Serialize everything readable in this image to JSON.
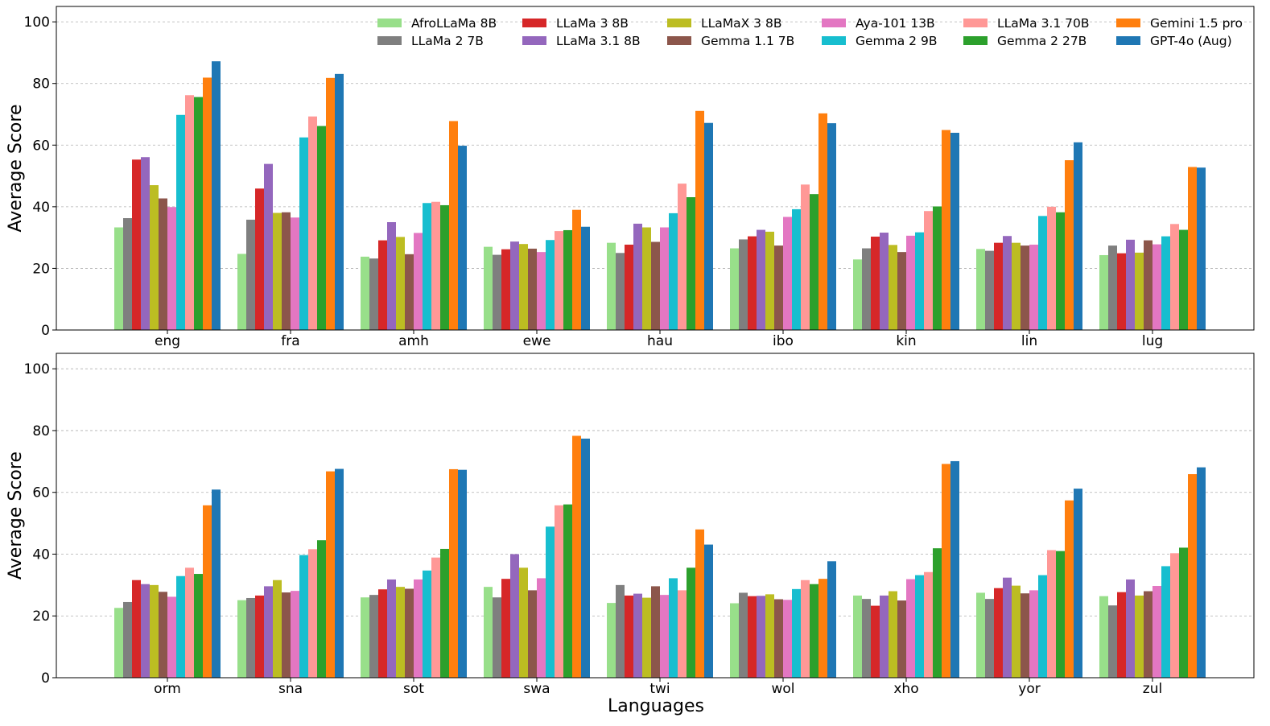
{
  "chart_data": [
    {
      "type": "bar",
      "panel": "top",
      "ylabel": "Average Score",
      "xlabel": "",
      "ylim": [
        0,
        105
      ],
      "yticks": [
        0,
        20,
        40,
        60,
        80,
        100
      ],
      "grid": true,
      "legend_position": "top-right",
      "categories": [
        "eng",
        "fra",
        "amh",
        "ewe",
        "hau",
        "ibo",
        "kin",
        "lin",
        "lug"
      ],
      "series": [
        {
          "name": "AfroLLaMa 8B",
          "color": "#98df8a",
          "values": [
            33.3,
            24.7,
            23.8,
            27.0,
            28.3,
            26.5,
            22.9,
            26.3,
            24.3
          ]
        },
        {
          "name": "LLaMa 2 7B",
          "color": "#7f7f7f",
          "values": [
            36.3,
            35.8,
            23.2,
            24.4,
            25.0,
            29.4,
            26.5,
            25.7,
            27.4
          ]
        },
        {
          "name": "LLaMa 3 8B",
          "color": "#d62728",
          "values": [
            55.3,
            45.9,
            29.1,
            26.2,
            27.7,
            30.4,
            30.3,
            28.3,
            24.9
          ]
        },
        {
          "name": "LLaMa 3.1 8B",
          "color": "#9467bd",
          "values": [
            56.1,
            53.9,
            35.0,
            28.7,
            34.5,
            32.5,
            31.6,
            30.5,
            29.3
          ]
        },
        {
          "name": "LLaMaX 3 8B",
          "color": "#bcbd22",
          "values": [
            47.0,
            38.0,
            30.2,
            27.9,
            33.3,
            31.9,
            27.6,
            28.3,
            25.1
          ]
        },
        {
          "name": "Gemma 1.1 7B",
          "color": "#8c564b",
          "values": [
            42.7,
            38.2,
            24.6,
            26.4,
            28.6,
            27.4,
            25.3,
            27.4,
            29.1
          ]
        },
        {
          "name": "Aya-101 13B",
          "color": "#e377c2",
          "values": [
            39.9,
            36.5,
            31.5,
            25.3,
            33.3,
            36.7,
            30.6,
            27.7,
            27.8
          ]
        },
        {
          "name": "Gemma 2 9B",
          "color": "#17becf",
          "values": [
            69.8,
            62.5,
            41.2,
            29.2,
            37.9,
            39.2,
            31.7,
            37.0,
            30.4
          ]
        },
        {
          "name": "LLaMa 3.1 70B",
          "color": "#ff9896",
          "values": [
            76.2,
            69.3,
            41.6,
            32.1,
            47.5,
            47.2,
            38.6,
            40.0,
            34.4
          ]
        },
        {
          "name": "Gemma 2 27B",
          "color": "#2ca02c",
          "values": [
            75.6,
            66.2,
            40.5,
            32.4,
            43.1,
            44.1,
            40.1,
            38.2,
            32.5
          ]
        },
        {
          "name": "Gemini 1.5 pro",
          "color": "#ff7f0e",
          "values": [
            81.9,
            81.8,
            67.8,
            39.0,
            71.1,
            70.3,
            64.9,
            55.1,
            52.9
          ]
        },
        {
          "name": "GPT-4o (Aug)",
          "color": "#1f77b4",
          "values": [
            87.2,
            83.1,
            59.8,
            33.5,
            67.2,
            67.1,
            64.0,
            60.9,
            52.7
          ]
        }
      ]
    },
    {
      "type": "bar",
      "panel": "bottom",
      "ylabel": "Average Score",
      "xlabel": "Languages",
      "ylim": [
        0,
        105
      ],
      "yticks": [
        0,
        20,
        40,
        60,
        80,
        100
      ],
      "grid": true,
      "categories": [
        "orm",
        "sna",
        "sot",
        "swa",
        "twi",
        "wol",
        "xho",
        "yor",
        "zul"
      ],
      "series": [
        {
          "name": "AfroLLaMa 8B",
          "color": "#98df8a",
          "values": [
            22.6,
            25.1,
            26.0,
            29.4,
            24.2,
            24.1,
            26.6,
            27.5,
            26.4
          ]
        },
        {
          "name": "LLaMa 2 7B",
          "color": "#7f7f7f",
          "values": [
            24.5,
            25.8,
            26.8,
            26.0,
            30.0,
            27.5,
            25.5,
            25.5,
            23.4
          ]
        },
        {
          "name": "LLaMa 3 8B",
          "color": "#d62728",
          "values": [
            31.6,
            26.6,
            28.6,
            32.0,
            26.6,
            26.4,
            23.3,
            29.0,
            27.7
          ]
        },
        {
          "name": "LLaMa 3.1 8B",
          "color": "#9467bd",
          "values": [
            30.3,
            29.6,
            31.8,
            40.0,
            27.2,
            26.5,
            26.6,
            32.4,
            31.8
          ]
        },
        {
          "name": "LLaMaX 3 8B",
          "color": "#bcbd22",
          "values": [
            30.0,
            31.6,
            29.4,
            35.6,
            25.9,
            27.0,
            28.0,
            29.8,
            26.6
          ]
        },
        {
          "name": "Gemma 1.1 7B",
          "color": "#8c564b",
          "values": [
            27.8,
            27.6,
            28.8,
            28.3,
            29.6,
            25.4,
            25.0,
            27.3,
            28.0
          ]
        },
        {
          "name": "Aya-101 13B",
          "color": "#e377c2",
          "values": [
            26.2,
            28.1,
            31.8,
            32.2,
            26.8,
            25.2,
            31.9,
            28.3,
            29.7
          ]
        },
        {
          "name": "Gemma 2 9B",
          "color": "#17becf",
          "values": [
            32.9,
            39.7,
            34.7,
            48.9,
            32.2,
            28.7,
            33.2,
            33.2,
            36.1
          ]
        },
        {
          "name": "LLaMa 3.1 70B",
          "color": "#ff9896",
          "values": [
            35.6,
            41.6,
            38.9,
            55.8,
            28.3,
            31.6,
            34.2,
            41.3,
            40.3
          ]
        },
        {
          "name": "Gemma 2 27B",
          "color": "#2ca02c",
          "values": [
            33.6,
            44.5,
            41.7,
            56.1,
            35.6,
            30.3,
            41.9,
            41.0,
            42.1
          ]
        },
        {
          "name": "Gemini 1.5 pro",
          "color": "#ff7f0e",
          "values": [
            55.8,
            66.8,
            67.5,
            78.3,
            48.0,
            32.0,
            69.2,
            57.4,
            65.9
          ]
        },
        {
          "name": "GPT-4o (Aug)",
          "color": "#1f77b4",
          "values": [
            60.9,
            67.6,
            67.3,
            77.4,
            43.1,
            37.7,
            70.1,
            61.2,
            68.1
          ]
        }
      ]
    }
  ]
}
